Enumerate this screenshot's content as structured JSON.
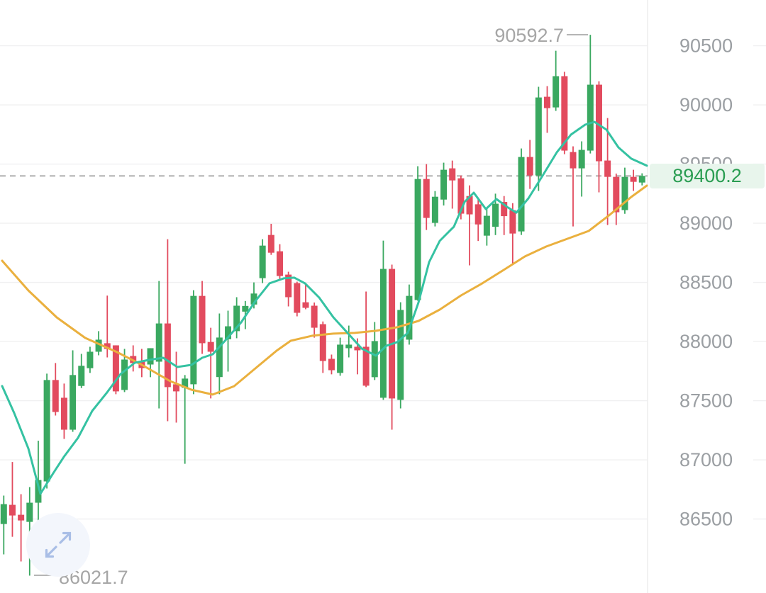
{
  "colors": {
    "up": "#3aa860",
    "down": "#e24b5e",
    "ma_fast": "#35c2a2",
    "ma_slow": "#eab03e",
    "grid": "#f0f0f1",
    "axis_text": "#9b9fa3",
    "annotation_text": "#a6a6a6",
    "price_dash": "#999999",
    "badge_bg": "#e8f5ec",
    "badge_text": "#2a9d52",
    "icon_arrow": "#a9bee6"
  },
  "chart_data": {
    "type": "candlestick",
    "title": "",
    "legend": "none",
    "grid": "horizontal",
    "y_axis": {
      "side": "right",
      "ticks": [
        "90500",
        "90000",
        "89500",
        "89000",
        "88500",
        "88000",
        "87500",
        "87000",
        "86500"
      ],
      "tick_values": [
        90500,
        90000,
        89500,
        89000,
        88500,
        88000,
        87500,
        87000,
        86500
      ],
      "range_top": 90890,
      "range_bottom": 85880
    },
    "annotations": {
      "high_label": "90592.7",
      "high_value": 90592.7,
      "low_label": "86021.7",
      "low_value": 86021.7
    },
    "price_line": {
      "value": 89400.2,
      "label": "89400.2",
      "style": "dashed"
    },
    "candles_format": [
      "open",
      "high",
      "low",
      "close"
    ],
    "candles": [
      [
        86458,
        86698,
        86201,
        86626
      ],
      [
        86620,
        86982,
        86350,
        86530
      ],
      [
        86536,
        86710,
        86141,
        86488
      ],
      [
        86476,
        86770,
        86021.7,
        86638
      ],
      [
        86638,
        87162,
        86470,
        86830
      ],
      [
        86818,
        87729,
        86758,
        87675
      ],
      [
        87675,
        87819,
        87375,
        87405
      ],
      [
        87525,
        87645,
        87177,
        87255
      ],
      [
        87255,
        87926,
        87237,
        87717
      ],
      [
        87625,
        87896,
        87607,
        87795
      ],
      [
        87775,
        87956,
        87735,
        87914
      ],
      [
        87914,
        88088,
        87884,
        88016
      ],
      [
        87986,
        88388,
        87866,
        87938
      ],
      [
        87968,
        87968,
        87555,
        87579
      ],
      [
        87591,
        87938,
        87573,
        87848
      ],
      [
        87878,
        87968,
        87747,
        87818
      ],
      [
        87836,
        87938,
        87699,
        87776
      ],
      [
        87806,
        87944,
        87699,
        87944
      ],
      [
        87830,
        88512,
        87435,
        88153
      ],
      [
        88153,
        88865,
        87327,
        87615
      ],
      [
        87639,
        87914,
        87315,
        87579
      ],
      [
        87609,
        87717,
        86967,
        87687
      ],
      [
        87639,
        88434,
        87555,
        88386
      ],
      [
        88386,
        88512,
        87896,
        87986
      ],
      [
        87996,
        88117,
        87519,
        87914
      ],
      [
        87700,
        88237,
        87555,
        88034
      ],
      [
        88020,
        88261,
        87746,
        88129
      ],
      [
        88088,
        88375,
        88028,
        88303
      ],
      [
        88253,
        88343,
        88105,
        88301
      ],
      [
        88313,
        88500,
        88280,
        88406
      ],
      [
        88536,
        88865,
        88494,
        88811
      ],
      [
        88901,
        88995,
        88733,
        88751
      ],
      [
        88763,
        88823,
        88524,
        88554
      ],
      [
        88566,
        88590,
        88297,
        88375
      ],
      [
        88494,
        88506,
        88213,
        88243
      ],
      [
        88332,
        88494,
        88273,
        88285
      ],
      [
        88303,
        88330,
        88033,
        88117
      ],
      [
        88147,
        88170,
        87735,
        87836
      ],
      [
        87854,
        87890,
        87723,
        87758
      ],
      [
        87735,
        88033,
        87711,
        87974
      ],
      [
        87944,
        88135,
        87866,
        87974
      ],
      [
        87956,
        88027,
        87723,
        87926
      ],
      [
        87956,
        88423,
        87615,
        87627
      ],
      [
        87699,
        88165,
        87675,
        88004
      ],
      [
        87525,
        88853,
        87507,
        88614
      ],
      [
        88614,
        88650,
        87255,
        87519
      ],
      [
        87507,
        88332,
        87435,
        88267
      ],
      [
        88016,
        88482,
        87974,
        88386
      ],
      [
        88351,
        89482,
        88345,
        89374
      ],
      [
        89374,
        89500,
        88943,
        89045
      ],
      [
        89003,
        89272,
        88973,
        89224
      ],
      [
        89200,
        89512,
        89150,
        89452
      ],
      [
        89464,
        89530,
        89123,
        89362
      ],
      [
        89380,
        89404,
        89033,
        89081
      ],
      [
        89230,
        89320,
        88644,
        89075
      ],
      [
        89160,
        89200,
        88850,
        88990
      ],
      [
        88895,
        89120,
        88811,
        89063
      ],
      [
        88970,
        89250,
        88900,
        89165
      ],
      [
        89180,
        89230,
        88900,
        89060
      ],
      [
        89111,
        89170,
        88650,
        88913
      ],
      [
        88931,
        89632,
        88901,
        89560
      ],
      [
        89560,
        89704,
        89290,
        89404
      ],
      [
        89404,
        90153,
        89273,
        90063
      ],
      [
        90069,
        90159,
        89764,
        89973
      ],
      [
        89979,
        90458,
        89950,
        90243
      ],
      [
        90243,
        90280,
        89584,
        89614
      ],
      [
        89602,
        89650,
        88973,
        89464
      ],
      [
        89464,
        89692,
        89225,
        89620
      ],
      [
        89614,
        90592.7,
        89590,
        90171
      ],
      [
        90171,
        90200,
        89261,
        89524
      ],
      [
        89530,
        89889,
        88985,
        89392
      ],
      [
        89392,
        89420,
        88985,
        89093
      ],
      [
        89111,
        89470,
        89080,
        89392
      ],
      [
        89392,
        89452,
        89273,
        89350
      ],
      [
        89344,
        89422,
        89320,
        89400.2
      ]
    ],
    "series": [
      {
        "name": "ma-fast-teal",
        "color": "#35c2a2",
        "points": [
          [
            3,
            87624
          ],
          [
            20,
            87396
          ],
          [
            40,
            87096
          ],
          [
            57,
            86713
          ],
          [
            75,
            86887
          ],
          [
            90,
            87025
          ],
          [
            110,
            87186
          ],
          [
            130,
            87414
          ],
          [
            150,
            87563
          ],
          [
            170,
            87725
          ],
          [
            190,
            87821
          ],
          [
            210,
            87845
          ],
          [
            230,
            87863
          ],
          [
            250,
            87785
          ],
          [
            270,
            87803
          ],
          [
            285,
            87863
          ],
          [
            300,
            87893
          ],
          [
            320,
            88025
          ],
          [
            340,
            88162
          ],
          [
            360,
            88342
          ],
          [
            380,
            88492
          ],
          [
            400,
            88534
          ],
          [
            415,
            88540
          ],
          [
            430,
            88492
          ],
          [
            450,
            88372
          ],
          [
            470,
            88205
          ],
          [
            490,
            88073
          ],
          [
            510,
            87941
          ],
          [
            530,
            87881
          ],
          [
            545,
            87965
          ],
          [
            560,
            87995
          ],
          [
            575,
            88073
          ],
          [
            590,
            88330
          ],
          [
            605,
            88671
          ],
          [
            620,
            88851
          ],
          [
            640,
            88971
          ],
          [
            655,
            89180
          ],
          [
            668,
            89258
          ],
          [
            685,
            89120
          ],
          [
            700,
            89204
          ],
          [
            715,
            89138
          ],
          [
            728,
            89090
          ],
          [
            745,
            89210
          ],
          [
            765,
            89402
          ],
          [
            785,
            89599
          ],
          [
            805,
            89749
          ],
          [
            825,
            89833
          ],
          [
            838,
            89857
          ],
          [
            855,
            89791
          ],
          [
            872,
            89641
          ],
          [
            890,
            89546
          ],
          [
            912,
            89486
          ]
        ]
      },
      {
        "name": "ma-slow-orange",
        "color": "#eab03e",
        "points": [
          [
            3,
            88683
          ],
          [
            40,
            88432
          ],
          [
            80,
            88204
          ],
          [
            120,
            88031
          ],
          [
            165,
            87911
          ],
          [
            200,
            87803
          ],
          [
            240,
            87665
          ],
          [
            270,
            87593
          ],
          [
            300,
            87552
          ],
          [
            330,
            87623
          ],
          [
            360,
            87773
          ],
          [
            390,
            87923
          ],
          [
            410,
            88007
          ],
          [
            440,
            88049
          ],
          [
            470,
            88067
          ],
          [
            500,
            88073
          ],
          [
            530,
            88091
          ],
          [
            560,
            88121
          ],
          [
            590,
            88174
          ],
          [
            620,
            88270
          ],
          [
            650,
            88390
          ],
          [
            680,
            88492
          ],
          [
            710,
            88605
          ],
          [
            740,
            88719
          ],
          [
            770,
            88803
          ],
          [
            800,
            88869
          ],
          [
            830,
            88935
          ],
          [
            860,
            89073
          ],
          [
            890,
            89222
          ],
          [
            912,
            89318
          ]
        ]
      }
    ]
  },
  "icons": {
    "expand_icon": "diagonal-expand-arrows"
  }
}
